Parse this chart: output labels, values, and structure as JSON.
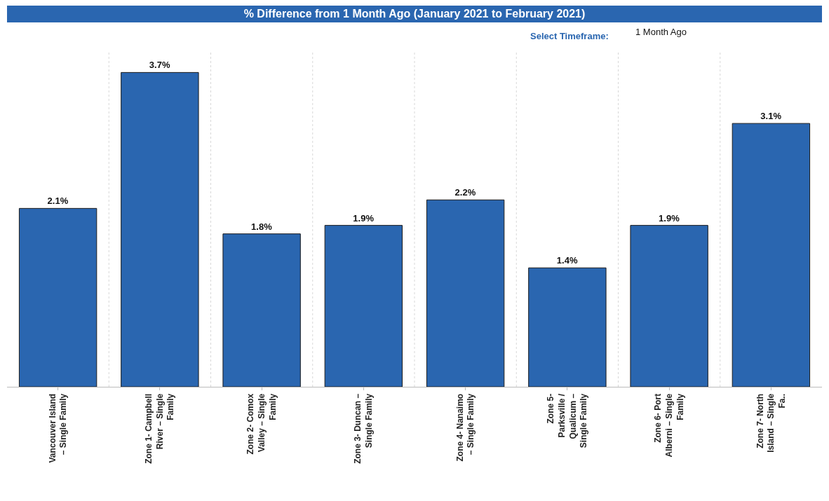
{
  "chart_data": {
    "type": "bar",
    "title": "% Difference from 1 Month Ago (January 2021 to February 2021)",
    "annotations": [
      "Select Timeframe:",
      "1 Month Ago"
    ],
    "categories": [
      "Vancouver Island – Single Family",
      "Zone 1- Campbell River – Single Family",
      "Zone 2- Comox Valley – Single Family",
      "Zone 3- Duncan – Single Family",
      "Zone 4- Nanaimo – Single Family",
      "Zone 5- Parksville / Qualicum – Single Family",
      "Zone 6- Port Alberni – Single Family",
      "Zone 7- North Island – Single Fa.."
    ],
    "values": [
      2.1,
      3.7,
      1.8,
      1.9,
      2.2,
      1.4,
      1.9,
      3.1
    ],
    "value_labels": [
      "2.1%",
      "3.7%",
      "1.8%",
      "1.9%",
      "2.2%",
      "1.4%",
      "1.9%",
      "3.1%"
    ],
    "color": "#2a66b0",
    "grid": "x",
    "legend": false
  }
}
